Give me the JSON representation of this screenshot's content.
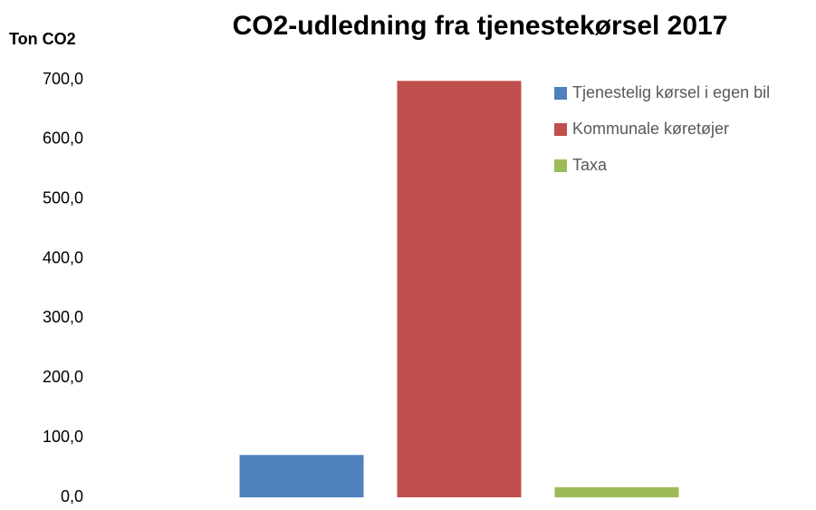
{
  "chart_data": {
    "type": "bar",
    "title": "CO2-udledning fra tjenestekørsel 2017",
    "y_label": "Ton CO2",
    "categories": [
      null
    ],
    "series": [
      {
        "name": "Tjenestelig kørsel i egen bil",
        "color": "#4f81bd",
        "values": [
          71
        ]
      },
      {
        "name": "Kommunale køretøjer",
        "color": "#c0504d",
        "values": [
          698
        ]
      },
      {
        "name": "Taxa",
        "color": "#9bbb59",
        "values": [
          17
        ]
      }
    ],
    "ylim": [
      0,
      700
    ],
    "yticks": [
      {
        "value": 0,
        "label": "0,0"
      },
      {
        "value": 100,
        "label": "100,0"
      },
      {
        "value": 200,
        "label": "200,0"
      },
      {
        "value": 300,
        "label": "300,0"
      },
      {
        "value": 400,
        "label": "400,0"
      },
      {
        "value": 500,
        "label": "500,0"
      },
      {
        "value": 600,
        "label": "600,0"
      },
      {
        "value": 700,
        "label": "700,0"
      }
    ],
    "grid": false,
    "legend": "top-right"
  }
}
